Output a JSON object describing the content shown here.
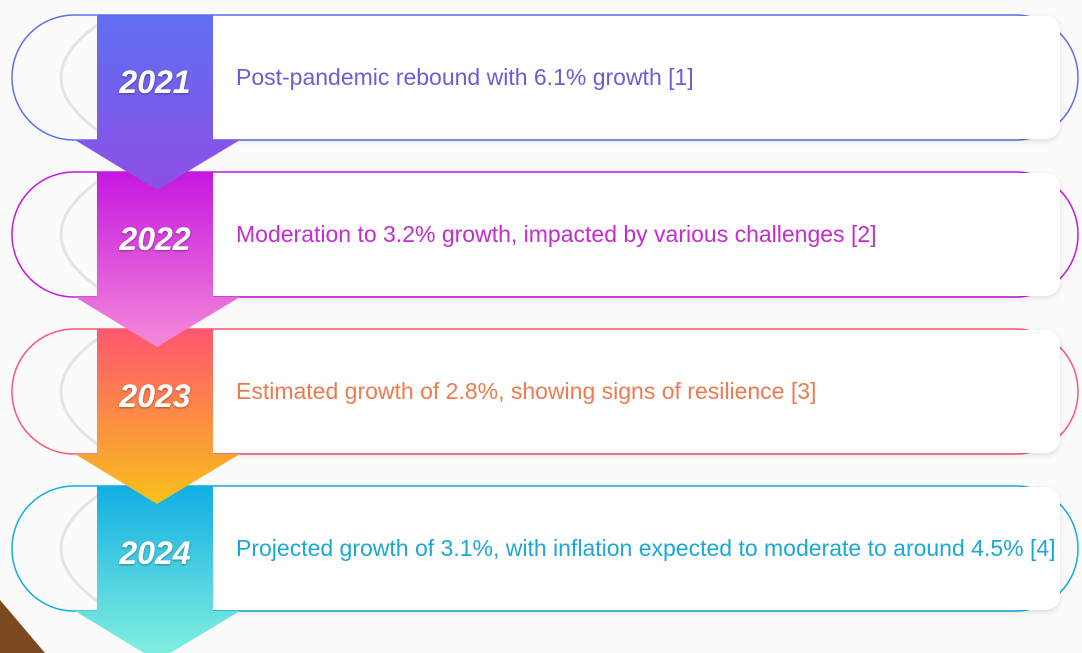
{
  "timeline": {
    "items": [
      {
        "year": "2021",
        "text": "Post-pandemic rebound with 6.1% growth [1]",
        "colors": [
          "#5f6ff2",
          "#8e4ee6"
        ],
        "text_color": "#6a5ed6"
      },
      {
        "year": "2022",
        "text": "Moderation to 3.2% growth, impacted by various challenges [2]",
        "colors": [
          "#c517e0",
          "#f48ad8"
        ],
        "text_color": "#c42ccf"
      },
      {
        "year": "2023",
        "text": "Estimated growth of 2.8%, showing signs of resilience [3]",
        "colors": [
          "#ff5670",
          "#f8c11a"
        ],
        "text_color": "#ef7a4f"
      },
      {
        "year": "2024",
        "text": "Projected growth of 3.1%, with inflation expected to moderate to around 4.5% [4]",
        "colors": [
          "#12aee2",
          "#86f2e0"
        ],
        "text_color": "#1ba8d6"
      }
    ]
  }
}
